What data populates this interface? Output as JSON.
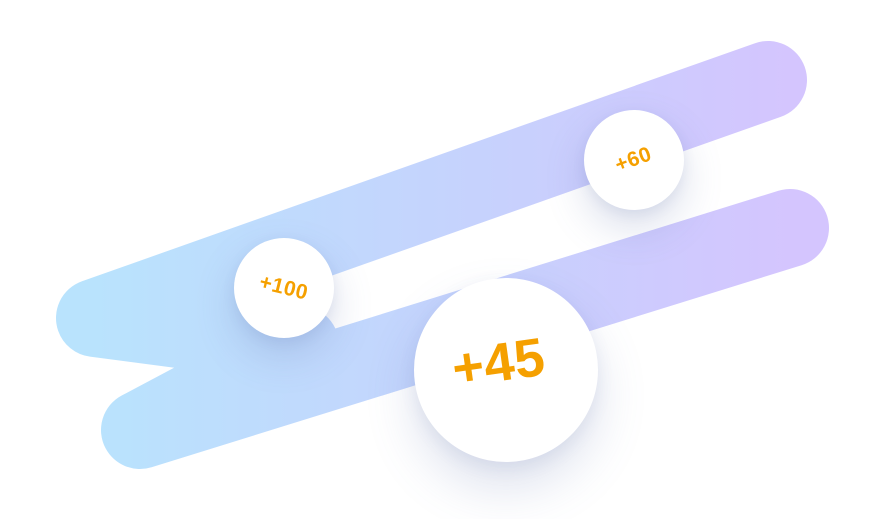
{
  "colors": {
    "stroke_start": "#b9e3fd",
    "stroke_mid": "#c6d2fd",
    "stroke_end": "#d4c5fe",
    "badge_background": "#ffffff",
    "badge_text": "#f5a000"
  },
  "badges": [
    {
      "label": "+60"
    },
    {
      "label": "+100"
    },
    {
      "label": "+45"
    }
  ]
}
